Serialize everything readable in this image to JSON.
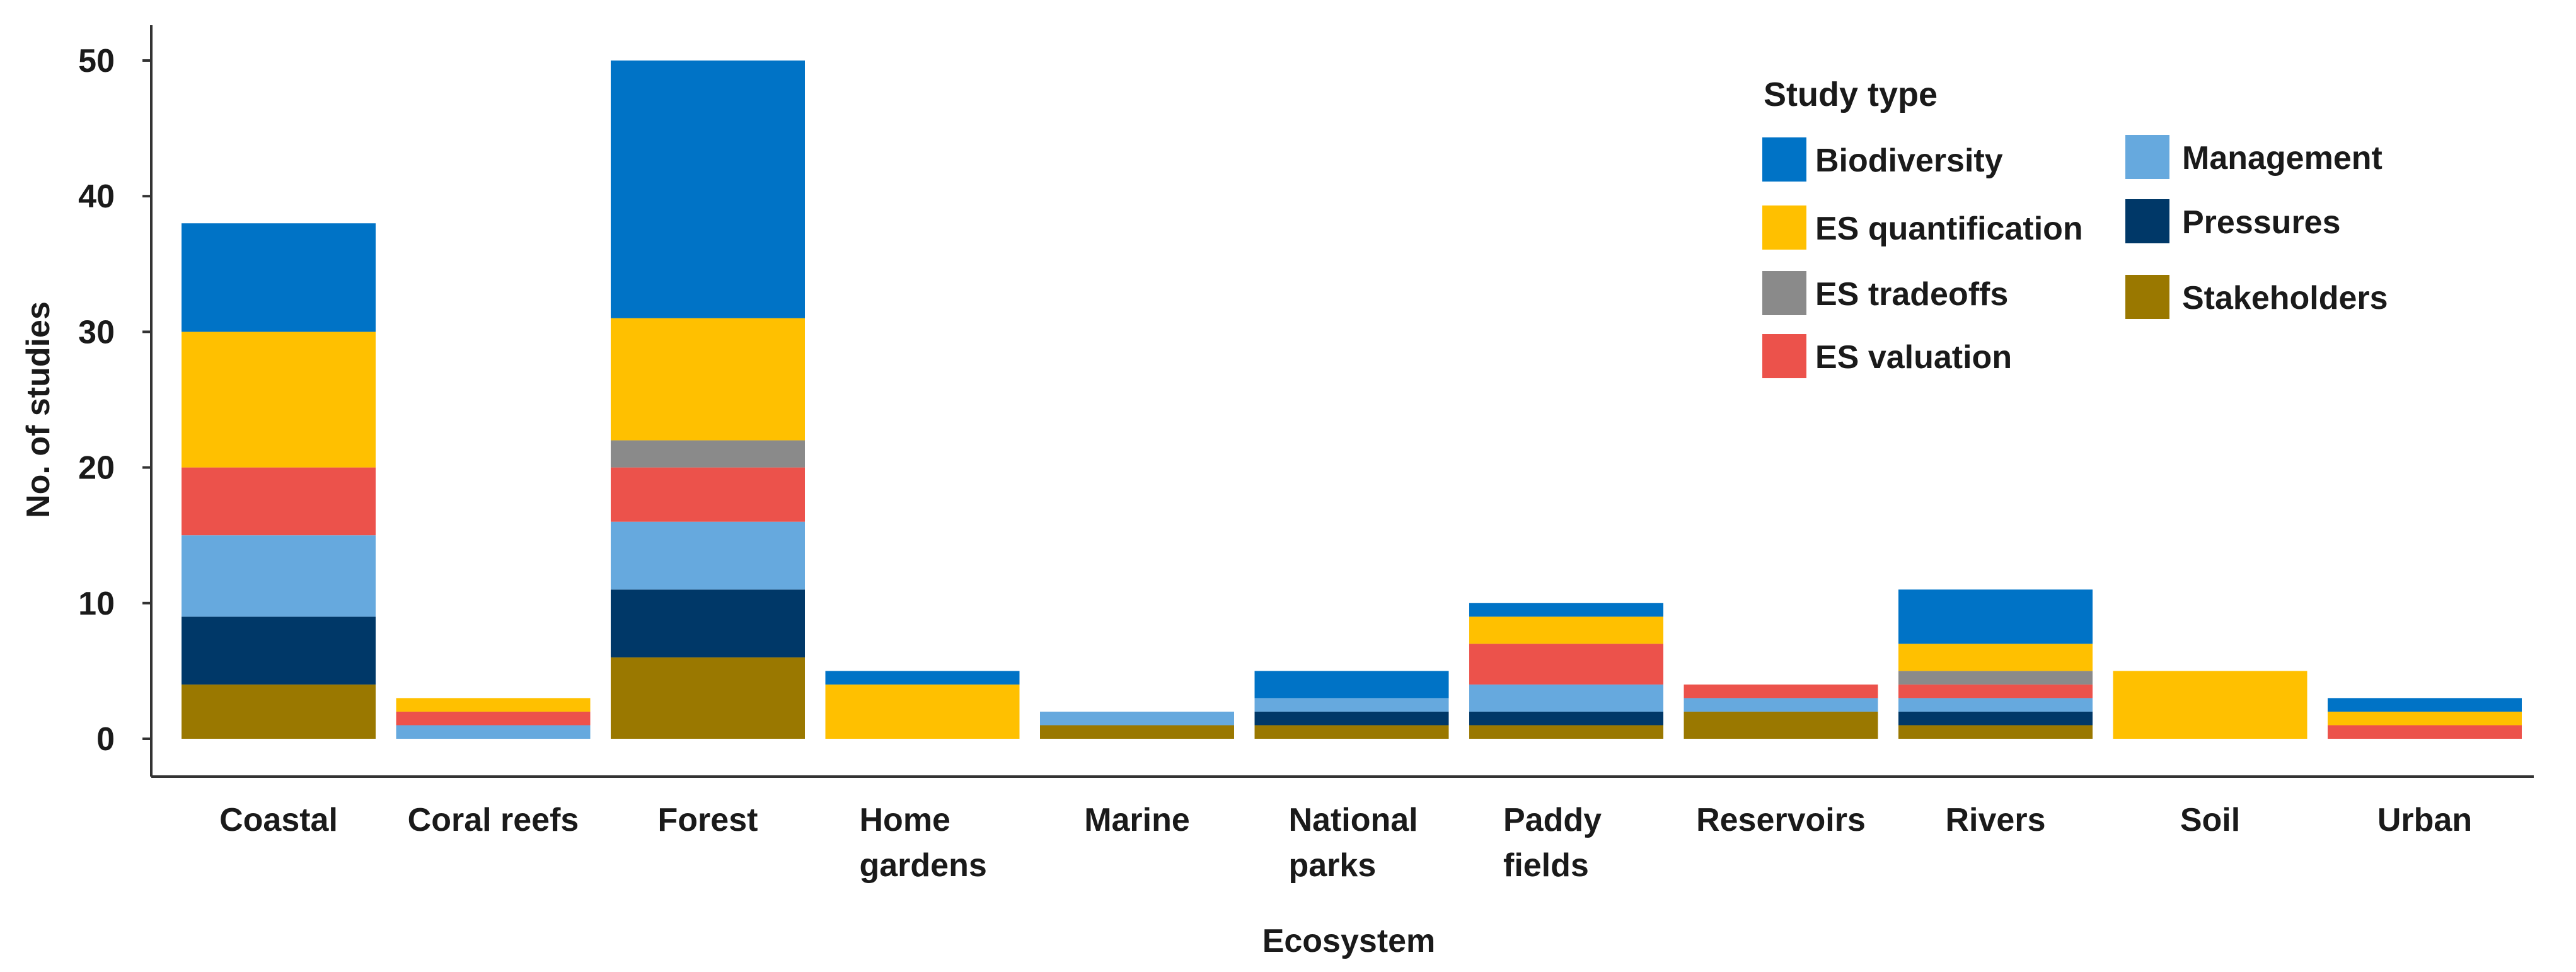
{
  "chart_data": {
    "type": "bar",
    "stacked": true,
    "xlabel": "Ecosystem",
    "ylabel": "No. of studies",
    "ylim": [
      0,
      52
    ],
    "yticks": [
      0,
      10,
      20,
      30,
      40,
      50
    ],
    "legend_title": "Study type",
    "legend_position": "top-right",
    "categories": [
      [
        "Coastal"
      ],
      [
        "Coral reefs"
      ],
      [
        "Forest"
      ],
      [
        "Home",
        "gardens"
      ],
      [
        "Marine"
      ],
      [
        "National",
        "parks"
      ],
      [
        "Paddy",
        "fields"
      ],
      [
        "Reservoirs"
      ],
      [
        "Rivers"
      ],
      [
        "Soil"
      ],
      [
        "Urban"
      ]
    ],
    "series": [
      {
        "name": "Stakeholders",
        "color": "#9a7800",
        "values": [
          4,
          0,
          6,
          0,
          1,
          1,
          1,
          2,
          1,
          0,
          0
        ]
      },
      {
        "name": "Pressures",
        "color": "#003868",
        "values": [
          5,
          0,
          5,
          0,
          0,
          1,
          1,
          0,
          1,
          0,
          0
        ]
      },
      {
        "name": "Management",
        "color": "#66a9de",
        "values": [
          6,
          1,
          5,
          0,
          1,
          1,
          2,
          1,
          1,
          0,
          0
        ]
      },
      {
        "name": "ES valuation",
        "color": "#ec524b",
        "values": [
          5,
          1,
          4,
          0,
          0,
          0,
          3,
          1,
          1,
          0,
          1
        ]
      },
      {
        "name": "ES tradeoffs",
        "color": "#8a8a8a",
        "values": [
          0,
          0,
          2,
          0,
          0,
          0,
          0,
          0,
          1,
          0,
          0
        ]
      },
      {
        "name": "ES quantification",
        "color": "#ffc000",
        "values": [
          10,
          1,
          9,
          4,
          0,
          0,
          2,
          0,
          2,
          5,
          1
        ]
      },
      {
        "name": "Biodiversity",
        "color": "#0073c6",
        "values": [
          8,
          0,
          19,
          1,
          0,
          2,
          1,
          0,
          4,
          0,
          1
        ]
      }
    ],
    "legend_layout": {
      "col1": [
        "Biodiversity",
        "ES quantification",
        "ES tradeoffs",
        "ES valuation"
      ],
      "col2": [
        "Management",
        "Pressures",
        "Stakeholders"
      ]
    }
  }
}
